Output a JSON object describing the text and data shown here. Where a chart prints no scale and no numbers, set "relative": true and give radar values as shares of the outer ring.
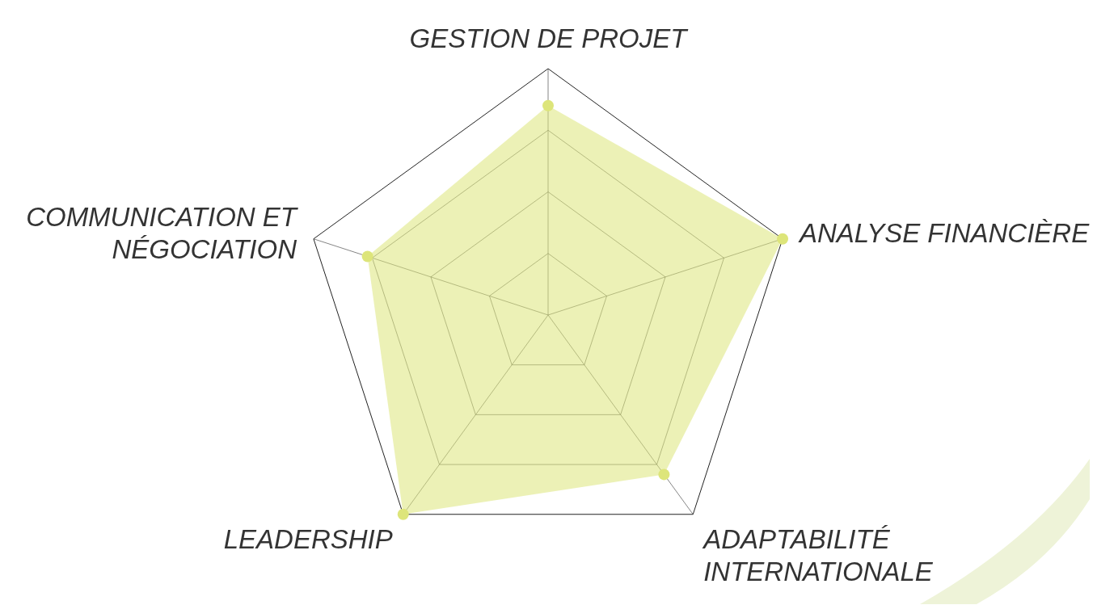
{
  "chart_data": {
    "type": "radar",
    "relative": true,
    "grid": true,
    "marker": "circle",
    "categories": [
      "GESTION DE PROJET",
      "ANALYSE FINANCIÈRE",
      "ADAPTABILITÉ INTERNATIONALE",
      "LEADERSHIP",
      "COMMUNICATION ET NÉGOCIATION"
    ],
    "series": [
      {
        "color": "#dde57a",
        "values": [
          0.85,
          1,
          0.8,
          1,
          0.77
        ]
      }
    ]
  }
}
